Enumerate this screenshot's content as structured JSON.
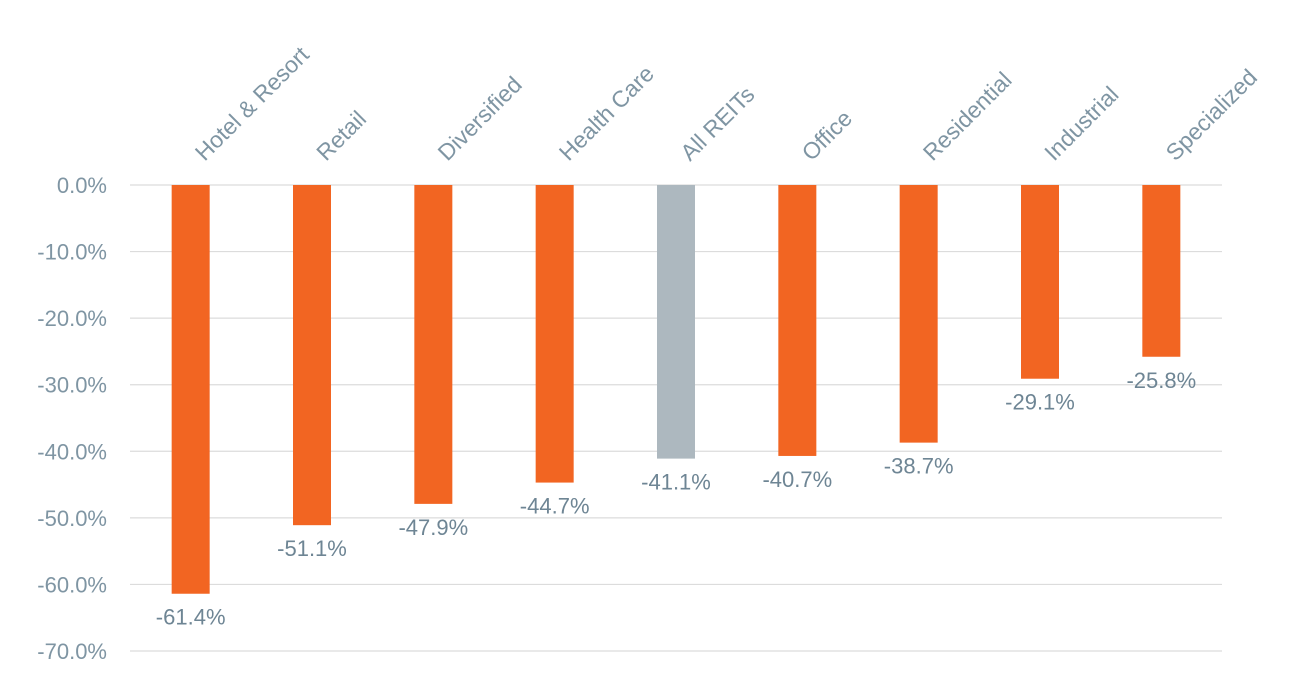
{
  "chart_data": {
    "type": "bar",
    "title": "",
    "xlabel": "",
    "ylabel": "",
    "categories": [
      "Hotel & Resort",
      "Retail",
      "Diversified",
      "Health Care",
      "All REITs",
      "Office",
      "Residential",
      "Industrial",
      "Specialized"
    ],
    "values": [
      -61.4,
      -51.1,
      -47.9,
      -44.7,
      -41.1,
      -40.7,
      -38.7,
      -29.1,
      -25.8
    ],
    "data_labels": [
      "-61.4%",
      "-51.1%",
      "-47.9%",
      "-44.7%",
      "-41.1%",
      "-40.7%",
      "-38.7%",
      "-29.1%",
      "-25.8%"
    ],
    "ylim": [
      -70,
      0
    ],
    "yticks": [
      0,
      -10,
      -20,
      -30,
      -40,
      -50,
      -60,
      -70
    ],
    "ytick_labels": [
      "0.0%",
      "-10.0%",
      "-20.0%",
      "-30.0%",
      "-40.0%",
      "-50.0%",
      "-60.0%",
      "-70.0%"
    ],
    "category_label_position": "top",
    "grid": true,
    "legend": "none",
    "colors": {
      "default_bar": "#f26522",
      "highlight_bar": "#adb8bf",
      "highlight_category": "All REITs",
      "gridline": "#dcdcdc",
      "text": "#7f95a3"
    }
  }
}
